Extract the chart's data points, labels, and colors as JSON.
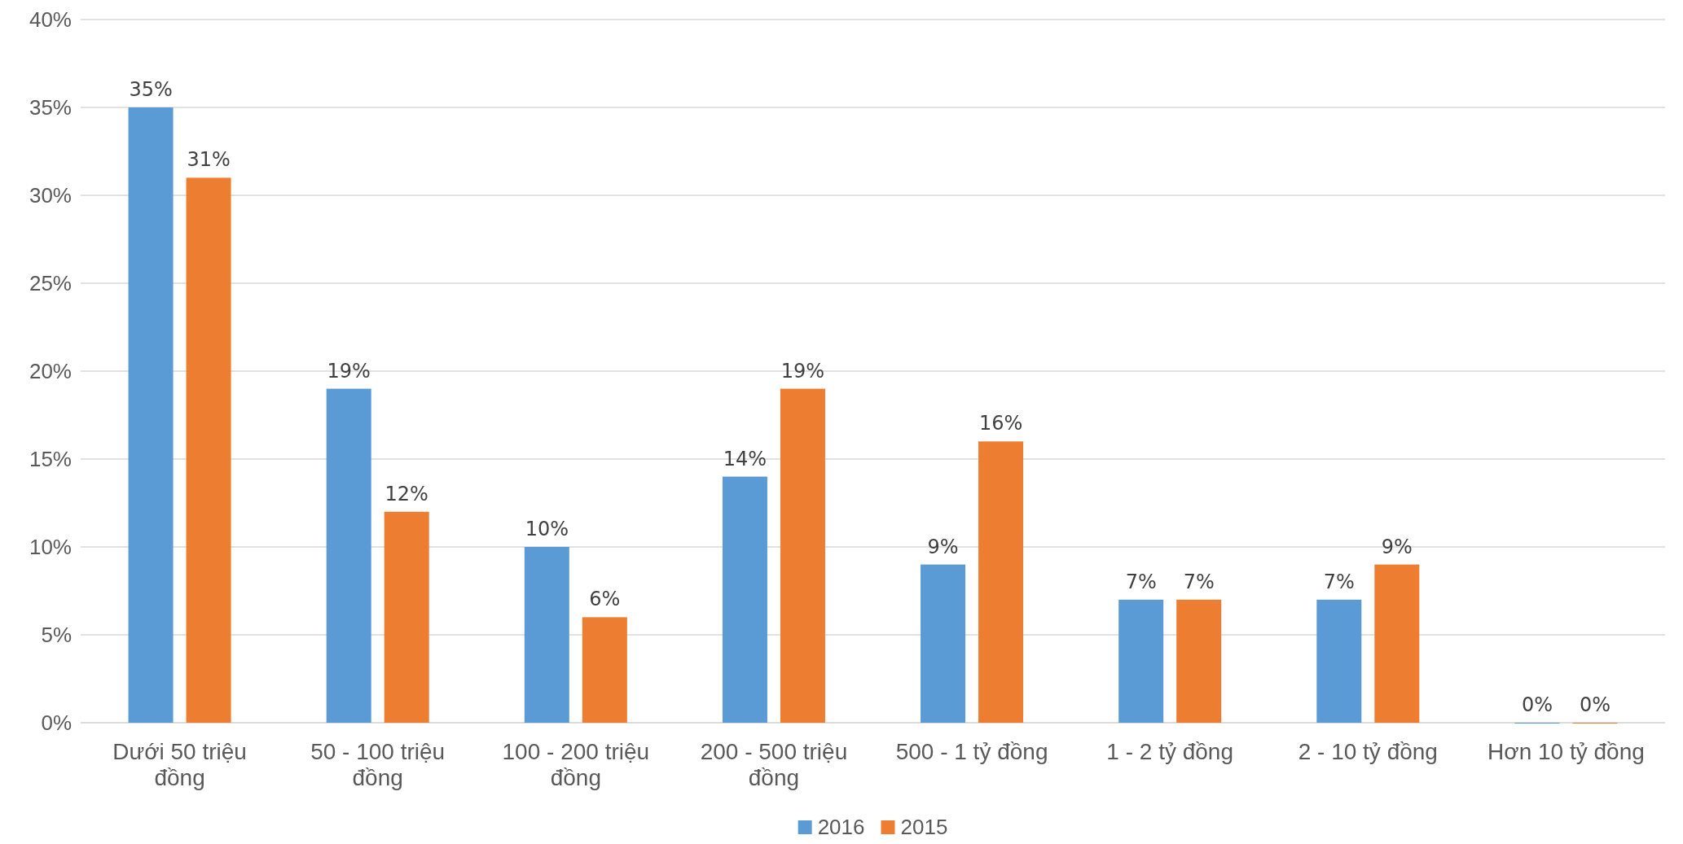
{
  "chart_data": {
    "type": "bar",
    "categories": [
      "Dưới 50 triệu đồng",
      "50 - 100 triệu đồng",
      "100 - 200 triệu đồng",
      "200 - 500 triệu đồng",
      "500 - 1 tỷ đồng",
      "1 - 2 tỷ đồng",
      "2 - 10 tỷ đồng",
      "Hơn 10 tỷ đồng"
    ],
    "series": [
      {
        "name": "2016",
        "color": "#5b9bd5",
        "values": [
          35,
          19,
          10,
          14,
          9,
          7,
          7,
          0
        ],
        "value_labels": [
          "35%",
          "19%",
          "10%",
          "14%",
          "9%",
          "7%",
          "7%",
          "0%"
        ]
      },
      {
        "name": "2015",
        "color": "#ed7d31",
        "values": [
          31,
          12,
          6,
          19,
          16,
          7,
          9,
          0
        ],
        "value_labels": [
          "31%",
          "12%",
          "6%",
          "19%",
          "16%",
          "7%",
          "9%",
          "0%"
        ]
      }
    ],
    "ylim": [
      0,
      40
    ],
    "yticks": [
      {
        "value": 0,
        "label": "0%"
      },
      {
        "value": 5,
        "label": "5%"
      },
      {
        "value": 10,
        "label": "10%"
      },
      {
        "value": 15,
        "label": "15%"
      },
      {
        "value": 20,
        "label": "20%"
      },
      {
        "value": 25,
        "label": "25%"
      },
      {
        "value": 30,
        "label": "30%"
      },
      {
        "value": 35,
        "label": "35%"
      },
      {
        "value": 40,
        "label": "40%"
      }
    ],
    "grid": "y",
    "legend": "bottom"
  }
}
